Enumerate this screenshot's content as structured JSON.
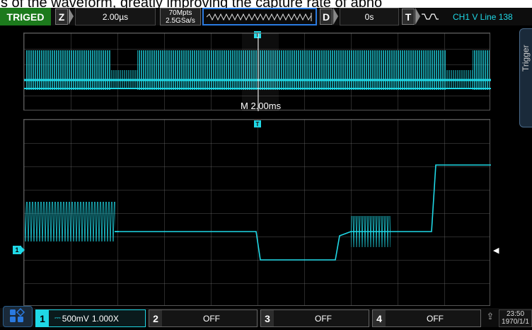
{
  "overlay_text": "s of the waveform, greatly improving the capture rate of abno",
  "status": {
    "label": "TRIGED",
    "color": "#1c7a1c"
  },
  "horizontal": {
    "zoom_letter": "Z",
    "timebase": "2.00µs"
  },
  "acquisition": {
    "memory_depth": "70Mpts",
    "sample_rate": "2.5GSa/s"
  },
  "delay": {
    "letter": "D",
    "value": "0s"
  },
  "trigger": {
    "letter": "T",
    "edge_icon": "rising-edge-icon",
    "info": "CH1 V Line 138"
  },
  "main_timebase_label": "M  2.00ms",
  "side_tab": {
    "label": "Trigger"
  },
  "channel_marker": "1",
  "trigger_marker": "T",
  "channels": [
    {
      "number": "1",
      "coupling_icon": "dc-coupling-icon",
      "scale": "500mV",
      "probe": "1.000X",
      "color": "#1fd8e6"
    },
    {
      "number": "2",
      "status": "OFF"
    },
    {
      "number": "3",
      "status": "OFF"
    },
    {
      "number": "4",
      "status": "OFF"
    }
  ],
  "clock": {
    "time": "23:50",
    "date": "1970/1/1"
  },
  "colors": {
    "trace": "#1fd8e6",
    "accent": "#2a7ae0",
    "grid": "#555555"
  }
}
